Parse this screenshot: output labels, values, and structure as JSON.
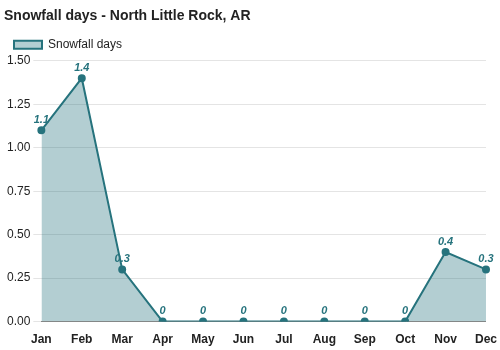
{
  "chart_data": {
    "type": "line",
    "title": "Snowfall days - North Little Rock, AR",
    "categories": [
      "Jan",
      "Feb",
      "Mar",
      "Apr",
      "May",
      "Jun",
      "Jul",
      "Aug",
      "Sep",
      "Oct",
      "Nov",
      "Dec"
    ],
    "series": [
      {
        "name": "Snowfall days",
        "color": "#26737d",
        "values": [
          1.1,
          1.4,
          0.3,
          0,
          0,
          0,
          0,
          0,
          0,
          0,
          0.4,
          0.3
        ]
      }
    ],
    "ylim": [
      0,
      1.5
    ],
    "yticks": [
      {
        "value": 0,
        "label": "0.00"
      },
      {
        "value": 0.25,
        "label": "0.25"
      },
      {
        "value": 0.5,
        "label": "0.50"
      },
      {
        "value": 0.75,
        "label": "0.75"
      },
      {
        "value": 1,
        "label": "1.00"
      },
      {
        "value": 1.25,
        "label": "1.25"
      },
      {
        "value": 1.5,
        "label": "1.50"
      }
    ],
    "grid": true,
    "legend": "top-left",
    "data_labels": true
  }
}
